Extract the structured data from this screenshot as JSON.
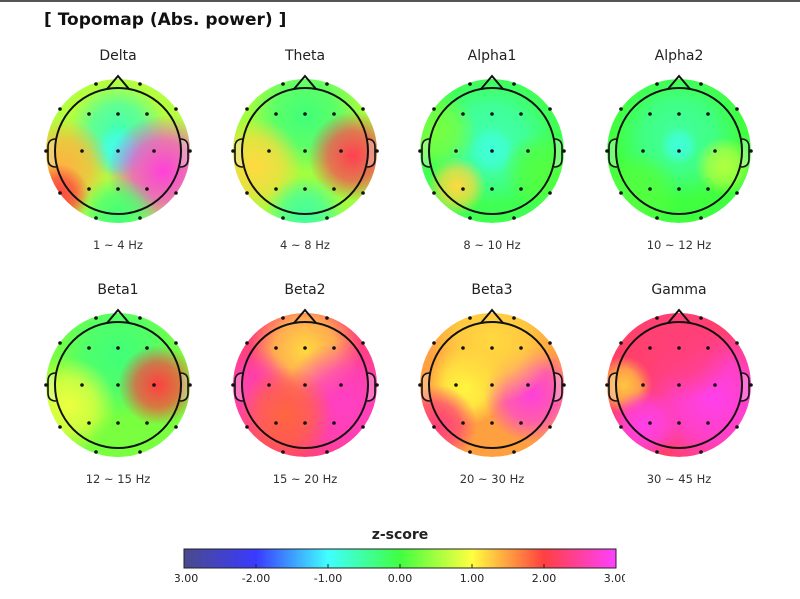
{
  "title": "[ Topomap (Abs. power) ]",
  "chart_data": {
    "type": "heatmap",
    "maps": [
      {
        "band": "Delta",
        "range": "1 ~ 4 Hz"
      },
      {
        "band": "Theta",
        "range": "4 ~ 8 Hz"
      },
      {
        "band": "Alpha1",
        "range": "8 ~ 10 Hz"
      },
      {
        "band": "Alpha2",
        "range": "10 ~ 12 Hz"
      },
      {
        "band": "Beta1",
        "range": "12 ~ 15 Hz"
      },
      {
        "band": "Beta2",
        "range": "15 ~ 20 Hz"
      },
      {
        "band": "Beta3",
        "range": "20 ~ 30 Hz"
      },
      {
        "band": "Gamma",
        "range": "30 ~ 45 Hz"
      }
    ],
    "colorbar": {
      "title": "z-score",
      "range": [
        -3,
        3
      ],
      "ticks": [
        "-3.00",
        "-2.00",
        "-1.00",
        "0.00",
        "1.00",
        "2.00",
        "3.00"
      ],
      "colors": [
        "#4a4a8c",
        "#3a3aff",
        "#40ffff",
        "#40ff40",
        "#ffff40",
        "#ff4040",
        "#ff40ff"
      ]
    }
  }
}
